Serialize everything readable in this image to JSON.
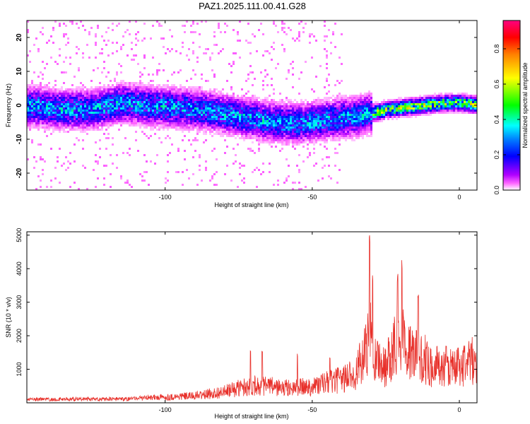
{
  "figure": {
    "title": "PAZ1.2025.111.00.41.G28"
  },
  "chart_data": [
    {
      "type": "heatmap",
      "xlabel": "Height of straight line (km)",
      "ylabel": "Frequency (Hz)",
      "xlim": [
        -147,
        6
      ],
      "ylim": [
        -25,
        25
      ],
      "xticks": [
        -100,
        -50,
        0
      ],
      "yticks": [
        -20,
        -10,
        0,
        10,
        20
      ],
      "colorbar": {
        "label": "Normalized spectral amplitude",
        "range": [
          0,
          0.96
        ],
        "ticks": [
          0.0,
          0.2,
          0.4,
          0.6,
          0.8
        ],
        "colormap": [
          "#ffffff",
          "#ff00ff",
          "#8000ff",
          "#0000ff",
          "#00ffff",
          "#00ff00",
          "#ffff00",
          "#ff8000",
          "#ff0000",
          "#ff0080"
        ]
      },
      "ridge": {
        "description_points_x": [
          -145,
          -135,
          -125,
          -115,
          -105,
          -95,
          -85,
          -75,
          -65,
          -55,
          -45,
          -35,
          -25,
          -15,
          -5,
          0,
          5
        ],
        "center_freq": [
          0,
          -1,
          -1,
          1,
          0,
          -0.5,
          -1.5,
          -3,
          -4.5,
          -5,
          -4,
          -3,
          -1,
          0,
          1,
          1,
          0.5
        ]
      }
    },
    {
      "type": "line",
      "xlabel": "Height of straight line (km)",
      "ylabel": "SNR (10 * v/v)",
      "xlim": [
        -147,
        6
      ],
      "ylim": [
        0,
        5100
      ],
      "xticks": [
        -100,
        -50,
        0
      ],
      "yticks": [
        1000,
        2000,
        3000,
        4000,
        5000
      ],
      "grid": false,
      "series": [
        {
          "color": "#e8302a",
          "envelope_x": [
            -147,
            -140,
            -130,
            -120,
            -112,
            -105,
            -100,
            -95,
            -90,
            -85,
            -80,
            -75,
            -70,
            -65,
            -60,
            -55,
            -50,
            -45,
            -40,
            -35,
            -32,
            -30,
            -28,
            -25,
            -22,
            -20,
            -18,
            -15,
            -12,
            -10,
            -5,
            0,
            3,
            6
          ],
          "envelope_y": [
            150,
            160,
            170,
            170,
            180,
            250,
            260,
            300,
            330,
            420,
            520,
            700,
            850,
            800,
            700,
            720,
            800,
            950,
            1100,
            1500,
            2300,
            3200,
            2100,
            1700,
            3000,
            3300,
            2500,
            2300,
            2100,
            1800,
            1700,
            1750,
            1950,
            2000
          ],
          "peaks_x": [
            -30.5,
            -29.5,
            -21,
            -19.5,
            -14,
            -71,
            -67,
            -55,
            -44
          ],
          "peaks_y": [
            5050,
            3900,
            3900,
            4350,
            3300,
            1600,
            1550,
            1500,
            1400
          ]
        }
      ]
    }
  ]
}
